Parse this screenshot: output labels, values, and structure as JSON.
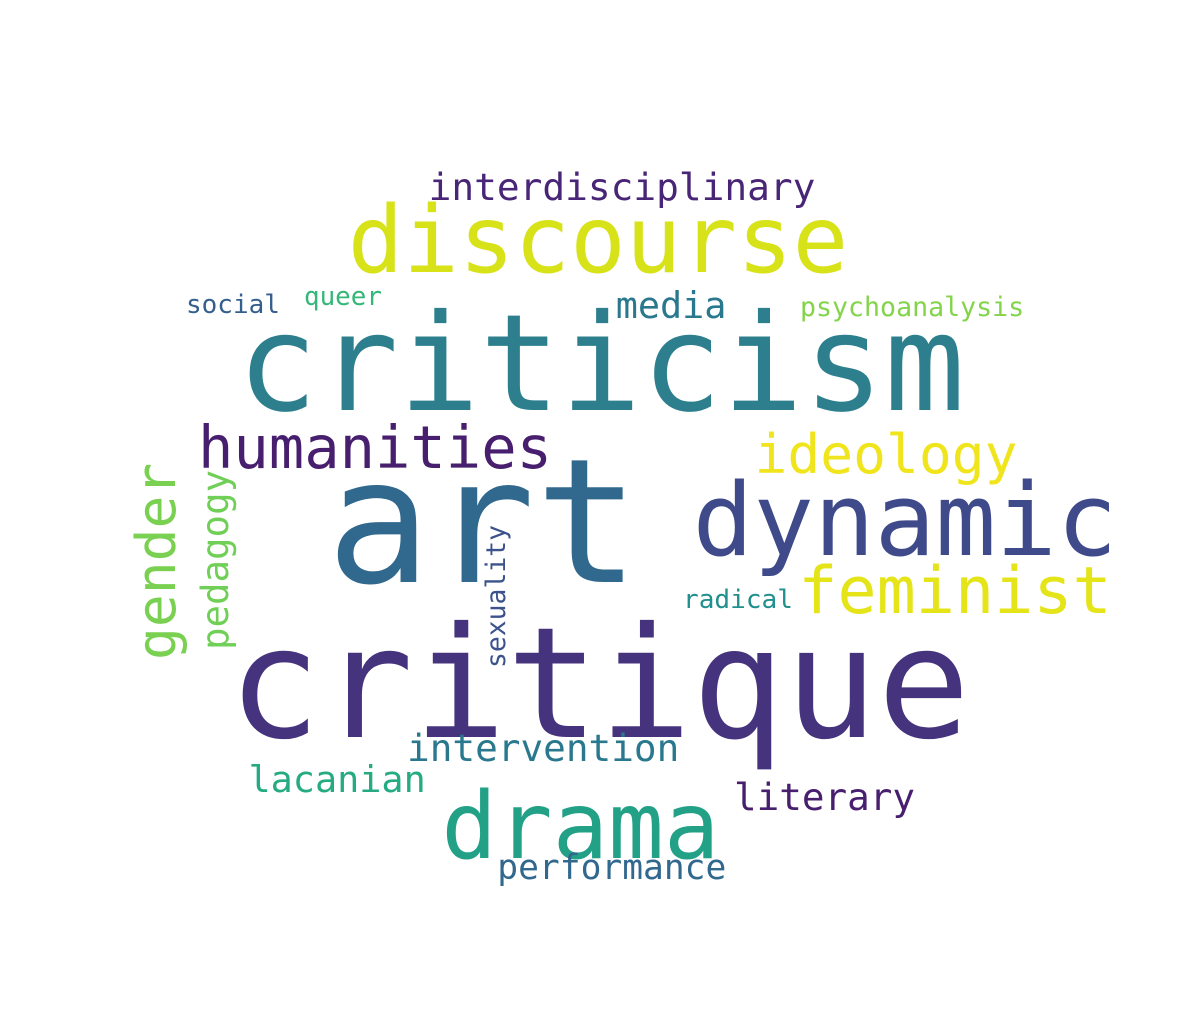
{
  "words": [
    {
      "text": "art",
      "color": "#31688e"
    },
    {
      "text": "criticism",
      "color": "#2d7f8e"
    },
    {
      "text": "critique",
      "color": "#46337e"
    },
    {
      "text": "discourse",
      "color": "#d8e219"
    },
    {
      "text": "dynamic",
      "color": "#3f4a8a"
    },
    {
      "text": "drama",
      "color": "#22a187"
    },
    {
      "text": "humanities",
      "color": "#471f6e"
    },
    {
      "text": "feminist",
      "color": "#e5e419"
    },
    {
      "text": "ideology",
      "color": "#f0e51d"
    },
    {
      "text": "gender",
      "color": "#7ad151"
    },
    {
      "text": "interdisciplinary",
      "color": "#482576"
    },
    {
      "text": "intervention",
      "color": "#2a788e"
    },
    {
      "text": "lacanian",
      "color": "#25ab82"
    },
    {
      "text": "literary",
      "color": "#471f6e"
    },
    {
      "text": "performance",
      "color": "#31688e"
    },
    {
      "text": "media",
      "color": "#2a788e"
    },
    {
      "text": "pedagogy",
      "color": "#70cf57"
    },
    {
      "text": "sexuality",
      "color": "#3b528b"
    },
    {
      "text": "radical",
      "color": "#218f8d"
    },
    {
      "text": "psychoanalysis",
      "color": "#84d44b"
    },
    {
      "text": "social",
      "color": "#355f8d"
    },
    {
      "text": "queer",
      "color": "#35b779"
    }
  ]
}
